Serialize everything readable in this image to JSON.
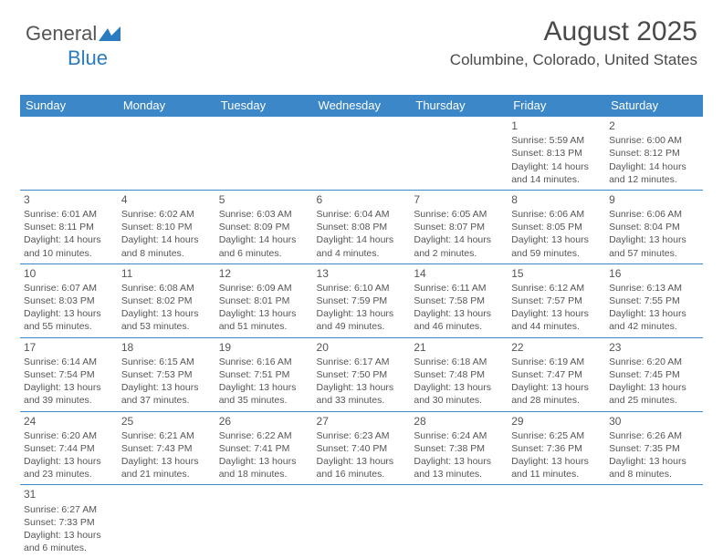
{
  "logo": {
    "part1": "General",
    "part2": "Blue"
  },
  "header": {
    "month_title": "August 2025",
    "location": "Columbine, Colorado, United States"
  },
  "calendar": {
    "type": "table",
    "header_bg": "#3b87c8",
    "header_fg": "#ffffff",
    "border_color": "#3b87c8",
    "cell_fontsize": 10.5,
    "daynum_fontsize": 12,
    "columns": [
      "Sunday",
      "Monday",
      "Tuesday",
      "Wednesday",
      "Thursday",
      "Friday",
      "Saturday"
    ],
    "weeks": [
      [
        null,
        null,
        null,
        null,
        null,
        {
          "n": "1",
          "sr": "Sunrise: 5:59 AM",
          "ss": "Sunset: 8:13 PM",
          "d1": "Daylight: 14 hours",
          "d2": "and 14 minutes."
        },
        {
          "n": "2",
          "sr": "Sunrise: 6:00 AM",
          "ss": "Sunset: 8:12 PM",
          "d1": "Daylight: 14 hours",
          "d2": "and 12 minutes."
        }
      ],
      [
        {
          "n": "3",
          "sr": "Sunrise: 6:01 AM",
          "ss": "Sunset: 8:11 PM",
          "d1": "Daylight: 14 hours",
          "d2": "and 10 minutes."
        },
        {
          "n": "4",
          "sr": "Sunrise: 6:02 AM",
          "ss": "Sunset: 8:10 PM",
          "d1": "Daylight: 14 hours",
          "d2": "and 8 minutes."
        },
        {
          "n": "5",
          "sr": "Sunrise: 6:03 AM",
          "ss": "Sunset: 8:09 PM",
          "d1": "Daylight: 14 hours",
          "d2": "and 6 minutes."
        },
        {
          "n": "6",
          "sr": "Sunrise: 6:04 AM",
          "ss": "Sunset: 8:08 PM",
          "d1": "Daylight: 14 hours",
          "d2": "and 4 minutes."
        },
        {
          "n": "7",
          "sr": "Sunrise: 6:05 AM",
          "ss": "Sunset: 8:07 PM",
          "d1": "Daylight: 14 hours",
          "d2": "and 2 minutes."
        },
        {
          "n": "8",
          "sr": "Sunrise: 6:06 AM",
          "ss": "Sunset: 8:05 PM",
          "d1": "Daylight: 13 hours",
          "d2": "and 59 minutes."
        },
        {
          "n": "9",
          "sr": "Sunrise: 6:06 AM",
          "ss": "Sunset: 8:04 PM",
          "d1": "Daylight: 13 hours",
          "d2": "and 57 minutes."
        }
      ],
      [
        {
          "n": "10",
          "sr": "Sunrise: 6:07 AM",
          "ss": "Sunset: 8:03 PM",
          "d1": "Daylight: 13 hours",
          "d2": "and 55 minutes."
        },
        {
          "n": "11",
          "sr": "Sunrise: 6:08 AM",
          "ss": "Sunset: 8:02 PM",
          "d1": "Daylight: 13 hours",
          "d2": "and 53 minutes."
        },
        {
          "n": "12",
          "sr": "Sunrise: 6:09 AM",
          "ss": "Sunset: 8:01 PM",
          "d1": "Daylight: 13 hours",
          "d2": "and 51 minutes."
        },
        {
          "n": "13",
          "sr": "Sunrise: 6:10 AM",
          "ss": "Sunset: 7:59 PM",
          "d1": "Daylight: 13 hours",
          "d2": "and 49 minutes."
        },
        {
          "n": "14",
          "sr": "Sunrise: 6:11 AM",
          "ss": "Sunset: 7:58 PM",
          "d1": "Daylight: 13 hours",
          "d2": "and 46 minutes."
        },
        {
          "n": "15",
          "sr": "Sunrise: 6:12 AM",
          "ss": "Sunset: 7:57 PM",
          "d1": "Daylight: 13 hours",
          "d2": "and 44 minutes."
        },
        {
          "n": "16",
          "sr": "Sunrise: 6:13 AM",
          "ss": "Sunset: 7:55 PM",
          "d1": "Daylight: 13 hours",
          "d2": "and 42 minutes."
        }
      ],
      [
        {
          "n": "17",
          "sr": "Sunrise: 6:14 AM",
          "ss": "Sunset: 7:54 PM",
          "d1": "Daylight: 13 hours",
          "d2": "and 39 minutes."
        },
        {
          "n": "18",
          "sr": "Sunrise: 6:15 AM",
          "ss": "Sunset: 7:53 PM",
          "d1": "Daylight: 13 hours",
          "d2": "and 37 minutes."
        },
        {
          "n": "19",
          "sr": "Sunrise: 6:16 AM",
          "ss": "Sunset: 7:51 PM",
          "d1": "Daylight: 13 hours",
          "d2": "and 35 minutes."
        },
        {
          "n": "20",
          "sr": "Sunrise: 6:17 AM",
          "ss": "Sunset: 7:50 PM",
          "d1": "Daylight: 13 hours",
          "d2": "and 33 minutes."
        },
        {
          "n": "21",
          "sr": "Sunrise: 6:18 AM",
          "ss": "Sunset: 7:48 PM",
          "d1": "Daylight: 13 hours",
          "d2": "and 30 minutes."
        },
        {
          "n": "22",
          "sr": "Sunrise: 6:19 AM",
          "ss": "Sunset: 7:47 PM",
          "d1": "Daylight: 13 hours",
          "d2": "and 28 minutes."
        },
        {
          "n": "23",
          "sr": "Sunrise: 6:20 AM",
          "ss": "Sunset: 7:45 PM",
          "d1": "Daylight: 13 hours",
          "d2": "and 25 minutes."
        }
      ],
      [
        {
          "n": "24",
          "sr": "Sunrise: 6:20 AM",
          "ss": "Sunset: 7:44 PM",
          "d1": "Daylight: 13 hours",
          "d2": "and 23 minutes."
        },
        {
          "n": "25",
          "sr": "Sunrise: 6:21 AM",
          "ss": "Sunset: 7:43 PM",
          "d1": "Daylight: 13 hours",
          "d2": "and 21 minutes."
        },
        {
          "n": "26",
          "sr": "Sunrise: 6:22 AM",
          "ss": "Sunset: 7:41 PM",
          "d1": "Daylight: 13 hours",
          "d2": "and 18 minutes."
        },
        {
          "n": "27",
          "sr": "Sunrise: 6:23 AM",
          "ss": "Sunset: 7:40 PM",
          "d1": "Daylight: 13 hours",
          "d2": "and 16 minutes."
        },
        {
          "n": "28",
          "sr": "Sunrise: 6:24 AM",
          "ss": "Sunset: 7:38 PM",
          "d1": "Daylight: 13 hours",
          "d2": "and 13 minutes."
        },
        {
          "n": "29",
          "sr": "Sunrise: 6:25 AM",
          "ss": "Sunset: 7:36 PM",
          "d1": "Daylight: 13 hours",
          "d2": "and 11 minutes."
        },
        {
          "n": "30",
          "sr": "Sunrise: 6:26 AM",
          "ss": "Sunset: 7:35 PM",
          "d1": "Daylight: 13 hours",
          "d2": "and 8 minutes."
        }
      ],
      [
        {
          "n": "31",
          "sr": "Sunrise: 6:27 AM",
          "ss": "Sunset: 7:33 PM",
          "d1": "Daylight: 13 hours",
          "d2": "and 6 minutes."
        },
        null,
        null,
        null,
        null,
        null,
        null
      ]
    ]
  }
}
